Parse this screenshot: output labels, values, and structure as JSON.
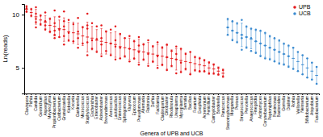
{
  "chart_data": {
    "type": "scatter",
    "y_label": "Ln(reads)",
    "x_label": "Genera of UPB and UCB",
    "categories": [
      "Clavispora",
      "Pichia",
      "Candida",
      "Geotrichum",
      "Aspergillus",
      "Meyerozyma",
      "Propionibacterium",
      "Cutibacterium",
      "Granulicatella",
      "Klebsiella",
      "Kocuria",
      "Gardnerella",
      "Micrococcus",
      "Staphylococcus",
      "Escherichia",
      "Enterobacter",
      "Acinetobacter",
      "Brevundimonas",
      "Aerococcus",
      "Lactobacillus",
      "Enterococcus",
      "Sphingomonas",
      "Kluyvera",
      "Epicoccum",
      "Pseudomonas",
      "Alternaria",
      "Ralstonia",
      "Delftia",
      "Facklamia",
      "Cladosporium",
      "Citrobacter",
      "Rhodotorula",
      "Ureaplasma",
      "Mycoplasma",
      "Serratia",
      "Bacillus",
      "Fusarium",
      "Exophiala",
      "Acremonium",
      "Penicillium",
      "Campylobacter",
      "Bordetella",
      "Paracoccus",
      "Stenotrophomonas",
      "Morganella",
      "Proteus",
      "Streptococcus",
      "Prevotella",
      "Anaerococcus",
      "Finegoldia",
      "Actinomyces",
      "Corynebacterium",
      "Peptoniphilus",
      "Parvimonas",
      "Bacteroides",
      "Gemella",
      "Dialister",
      "Rothia",
      "Veillonella",
      "Neisseria",
      "Bifidobacterium",
      "Atopobium",
      "Fusobacterium"
    ],
    "ylim": [
      2.6,
      11
    ],
    "yticks": [
      5,
      10
    ],
    "grid": false,
    "legend": "upper right",
    "series": [
      {
        "name": "UPB",
        "color": "#e41a1c",
        "marker": "circle",
        "values": [
          10.5,
          10.2,
          9.8,
          9.5,
          9.3,
          9.0,
          8.9,
          8.7,
          8.6,
          8.4,
          8.3,
          8.2,
          8.0,
          7.9,
          7.8,
          7.6,
          7.5,
          7.4,
          7.3,
          7.2,
          7.0,
          6.9,
          6.8,
          6.7,
          6.6,
          6.5,
          6.4,
          6.3,
          6.2,
          6.1,
          6.0,
          5.9,
          5.8,
          5.7,
          5.6,
          5.5,
          5.4,
          5.3,
          5.2,
          5.0,
          4.9,
          4.7,
          4.5,
          null,
          null,
          null,
          null,
          null,
          null,
          null,
          null,
          null,
          null,
          null,
          null,
          null,
          null,
          null,
          null,
          null,
          null,
          null,
          null
        ],
        "errors": [
          0.3,
          0.4,
          0.7,
          0.5,
          0.6,
          0.7,
          0.9,
          0.8,
          1.1,
          0.9,
          1.0,
          1.0,
          0.9,
          1.4,
          1.1,
          1.0,
          1.2,
          1.1,
          1.0,
          1.2,
          1.1,
          0.9,
          1.0,
          0.9,
          1.1,
          0.8,
          1.0,
          0.8,
          1.0,
          0.9,
          1.1,
          0.8,
          1.0,
          1.0,
          0.8,
          1.0,
          0.7,
          0.7,
          0.6,
          0.6,
          0.5,
          0.4,
          0.4,
          null,
          null,
          null,
          null,
          null,
          null,
          null,
          null,
          null,
          null,
          null,
          null,
          null,
          null,
          null,
          null,
          null,
          null,
          null,
          null
        ],
        "points": [
          [
            10.8,
            10.3,
            10.6
          ],
          [
            10.5,
            9.9
          ],
          [
            10.7,
            9.3,
            10.1,
            9.6,
            8.8
          ],
          [
            9.9,
            9.1
          ],
          [
            10.2,
            8.6,
            9.4,
            9.0
          ],
          [
            9.6,
            8.4
          ],
          [
            10.4,
            7.8,
            9.2,
            8.5,
            8.1
          ],
          [
            9.8,
            7.9,
            8.6
          ],
          [
            10.3,
            7.2,
            8.9,
            8.0,
            9.4
          ],
          [
            9.5,
            7.6,
            8.3
          ],
          [
            9.1,
            7.5
          ],
          [
            9.7,
            6.9,
            8.4,
            7.8
          ],
          [
            8.8,
            7.3
          ],
          [
            10.1,
            6.2,
            8.7,
            7.4,
            9.0
          ],
          [
            9.2,
            6.8,
            7.6
          ],
          [
            8.9,
            6.5,
            7.7
          ],
          [
            9.0,
            6.1,
            7.8,
            7.2
          ],
          [
            8.4,
            6.6
          ],
          [
            8.6,
            6.2,
            7.3
          ],
          [
            8.9,
            5.8,
            7.0,
            7.6
          ],
          [
            8.2,
            5.9,
            6.9
          ],
          [
            7.8,
            6.1
          ],
          [
            8.0,
            5.6,
            6.8
          ],
          [
            7.5,
            5.9
          ],
          [
            7.9,
            5.3,
            6.5,
            7.1
          ],
          [
            7.2,
            5.8
          ],
          [
            7.6,
            5.2,
            6.3
          ],
          [
            7.0,
            5.6
          ],
          [
            7.4,
            5.0,
            6.1
          ],
          [
            6.9,
            5.3
          ],
          [
            7.2,
            4.8,
            6.0
          ],
          [
            6.6,
            5.2
          ],
          [
            7.0,
            4.5,
            5.8,
            6.3
          ],
          [
            6.8,
            4.6,
            5.5
          ],
          [
            6.3,
            4.9
          ],
          [
            6.5,
            4.4
          ],
          [
            6.0,
            4.8
          ],
          [
            5.9,
            4.7
          ],
          [
            5.7,
            4.7
          ],
          [
            5.5,
            4.5
          ],
          [
            5.3,
            4.5
          ],
          [
            5.0,
            4.4
          ],
          [
            4.8,
            4.2
          ],
          null,
          null,
          null,
          null,
          null,
          null,
          null,
          null,
          null,
          null,
          null,
          null,
          null,
          null,
          null,
          null,
          null,
          null,
          null,
          null
        ]
      },
      {
        "name": "UCB",
        "color": "#3b8bd0",
        "marker": "circle",
        "values": [
          null,
          null,
          null,
          null,
          null,
          null,
          null,
          null,
          null,
          null,
          null,
          null,
          null,
          null,
          null,
          null,
          null,
          null,
          null,
          null,
          null,
          null,
          null,
          null,
          null,
          null,
          null,
          null,
          null,
          null,
          null,
          null,
          null,
          null,
          null,
          null,
          null,
          null,
          null,
          null,
          null,
          null,
          null,
          8.8,
          8.5,
          8.3,
          8.1,
          7.9,
          7.7,
          7.5,
          7.3,
          7.1,
          6.9,
          6.7,
          6.5,
          6.3,
          6.1,
          5.9,
          5.6,
          5.3,
          5.0,
          4.7,
          4.3
        ],
        "errors": [
          null,
          null,
          null,
          null,
          null,
          null,
          null,
          null,
          null,
          null,
          null,
          null,
          null,
          null,
          null,
          null,
          null,
          null,
          null,
          null,
          null,
          null,
          null,
          null,
          null,
          null,
          null,
          null,
          null,
          null,
          null,
          null,
          null,
          null,
          null,
          null,
          null,
          null,
          null,
          null,
          null,
          null,
          null,
          0.7,
          0.8,
          0.8,
          1.1,
          0.9,
          0.9,
          1.0,
          1.1,
          1.1,
          1.0,
          1.0,
          1.0,
          0.9,
          0.9,
          1.0,
          0.9,
          0.9,
          0.9,
          0.8,
          0.8
        ],
        "points": [
          null,
          null,
          null,
          null,
          null,
          null,
          null,
          null,
          null,
          null,
          null,
          null,
          null,
          null,
          null,
          null,
          null,
          null,
          null,
          null,
          null,
          null,
          null,
          null,
          null,
          null,
          null,
          null,
          null,
          null,
          null,
          null,
          null,
          null,
          null,
          null,
          null,
          null,
          null,
          null,
          null,
          null,
          null,
          [
            9.6,
            8.1,
            8.8
          ],
          [
            9.4,
            7.6,
            8.5
          ],
          [
            9.2,
            7.4,
            8.3
          ],
          [
            9.5,
            6.7,
            8.1,
            7.8
          ],
          [
            8.9,
            6.9,
            7.9
          ],
          [
            8.7,
            6.6,
            7.8
          ],
          [
            8.6,
            6.4,
            7.5
          ],
          [
            8.5,
            6.1,
            7.3
          ],
          [
            8.3,
            5.9,
            7.1
          ],
          [
            8.0,
            5.8,
            6.9
          ],
          [
            7.8,
            5.6,
            6.7
          ],
          [
            7.6,
            5.4,
            6.5
          ],
          [
            7.3,
            5.3,
            6.3
          ],
          [
            7.1,
            5.1,
            6.1
          ],
          [
            6.9,
            4.9
          ],
          [
            6.5,
            4.7
          ],
          [
            6.2,
            4.4
          ],
          [
            5.9,
            4.1
          ],
          [
            5.5,
            3.9
          ],
          [
            5.1,
            3.5
          ]
        ]
      }
    ]
  }
}
